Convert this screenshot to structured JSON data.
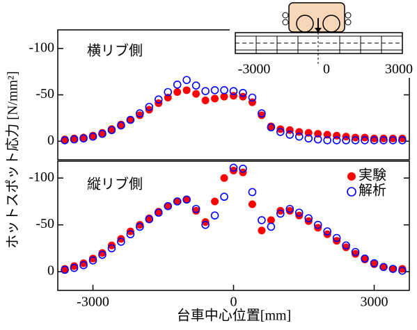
{
  "chart_data": [
    {
      "type": "scatter",
      "panel_label": "横リブ側",
      "ylabel": "ホットスポット応力 [N/mm²]",
      "x": [
        -3600,
        -3400,
        -3200,
        -3000,
        -2800,
        -2600,
        -2400,
        -2200,
        -2000,
        -1800,
        -1600,
        -1400,
        -1200,
        -1000,
        -800,
        -600,
        -400,
        -200,
        0,
        200,
        400,
        600,
        800,
        1000,
        1200,
        1400,
        1600,
        1800,
        2000,
        2200,
        2400,
        2600,
        2800,
        3000,
        3200,
        3400,
        3600
      ],
      "series": [
        {
          "color": "#ff0000",
          "marker": "filled",
          "values": [
            -2,
            -3,
            -4,
            -6,
            -9,
            -13,
            -18,
            -23,
            -28,
            -34,
            -41,
            -47,
            -53,
            -55,
            -51,
            -44,
            -46,
            -48,
            -49,
            -48,
            -42,
            -28,
            -16,
            -13,
            -12,
            -10,
            -9,
            -8,
            -7,
            -6,
            -5,
            -4,
            -4,
            -3,
            -3,
            -3,
            -3
          ]
        },
        {
          "color": "#0000ff",
          "marker": "open",
          "values": [
            -1,
            -2,
            -3,
            -5,
            -8,
            -12,
            -17,
            -23,
            -30,
            -37,
            -45,
            -53,
            -61,
            -66,
            -60,
            -54,
            -55,
            -55,
            -54,
            -52,
            -47,
            -30,
            -15,
            -10,
            -7,
            -5,
            -3,
            -2,
            -1,
            -1,
            -1,
            -1,
            -1,
            -1,
            -1,
            -1,
            -1
          ]
        }
      ],
      "xlim": [
        -3750,
        3750
      ],
      "ylim": [
        -120,
        20
      ],
      "y_inverted": true,
      "yticks": [
        -100,
        -50,
        0
      ],
      "inset_xticks": [
        -3000,
        0,
        3000
      ]
    },
    {
      "type": "scatter",
      "panel_label": "縦リブ側",
      "xlabel": "台車中心位置[mm]",
      "legend": "upper right",
      "x": [
        -3600,
        -3400,
        -3200,
        -3000,
        -2800,
        -2600,
        -2400,
        -2200,
        -2000,
        -1800,
        -1600,
        -1400,
        -1200,
        -1000,
        -800,
        -600,
        -400,
        -200,
        0,
        200,
        400,
        600,
        800,
        1000,
        1200,
        1400,
        1600,
        1800,
        2000,
        2200,
        2400,
        2600,
        2800,
        3000,
        3200,
        3400,
        3600
      ],
      "series": [
        {
          "name": "実験",
          "color": "#ff0000",
          "marker": "filled",
          "values": [
            -3,
            -6,
            -9,
            -14,
            -20,
            -28,
            -35,
            -43,
            -50,
            -57,
            -64,
            -70,
            -75,
            -77,
            -65,
            -53,
            -75,
            -100,
            -108,
            -106,
            -72,
            -44,
            -55,
            -65,
            -65,
            -60,
            -54,
            -47,
            -40,
            -33,
            -26,
            -19,
            -13,
            -8,
            -5,
            -3,
            -3
          ]
        },
        {
          "name": "解析",
          "color": "#0000ff",
          "marker": "open",
          "values": [
            -2,
            -4,
            -7,
            -12,
            -18,
            -25,
            -32,
            -40,
            -48,
            -56,
            -63,
            -70,
            -75,
            -77,
            -67,
            -50,
            -60,
            -80,
            -111,
            -110,
            -85,
            -55,
            -48,
            -62,
            -67,
            -63,
            -57,
            -50,
            -43,
            -36,
            -28,
            -21,
            -14,
            -9,
            -5,
            -3,
            -1
          ]
        }
      ],
      "xlim": [
        -3750,
        3750
      ],
      "xticks": [
        -3000,
        0,
        3000
      ],
      "ylim": [
        -118,
        20
      ],
      "y_inverted": true,
      "yticks": [
        -100,
        -50,
        0
      ]
    }
  ]
}
